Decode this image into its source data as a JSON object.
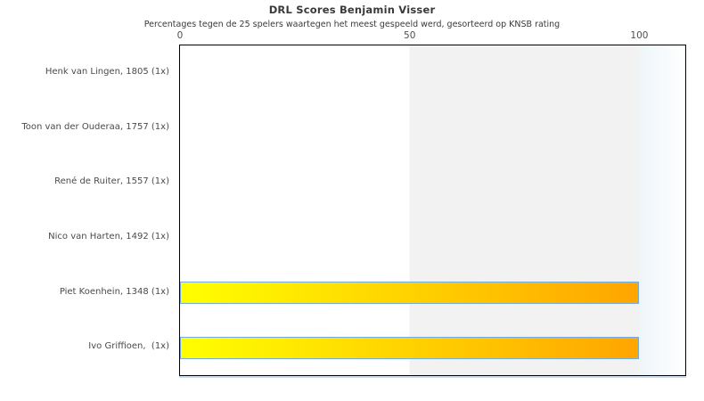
{
  "chart_data": {
    "type": "bar",
    "orientation": "horizontal",
    "title": "DRL Scores Benjamin Visser",
    "subtitle": "Percentages tegen de 25 spelers waartegen het meest gespeeld werd, gesorteerd op KNSB rating",
    "categories": [
      "Henk van Lingen, 1805 (1x)",
      "Toon van der Ouderaa, 1757 (1x)",
      "René de Ruiter, 1557 (1x)",
      "Nico van Harten, 1492 (1x)",
      "Piet Koenhein, 1348 (1x)",
      "Ivo Griffioen,  (1x)"
    ],
    "players": [
      {
        "name": "Henk van Lingen",
        "knsb_rating": "1805",
        "games": "1x",
        "score_pct": 0
      },
      {
        "name": "Toon van der Ouderaa",
        "knsb_rating": "1757",
        "games": "1x",
        "score_pct": 0
      },
      {
        "name": "René de Ruiter",
        "knsb_rating": "1557",
        "games": "1x",
        "score_pct": 0
      },
      {
        "name": "Nico van Harten",
        "knsb_rating": "1492",
        "games": "1x",
        "score_pct": 0
      },
      {
        "name": "Piet Koenhein",
        "knsb_rating": "1348",
        "games": "1x",
        "score_pct": 100
      },
      {
        "name": "Ivo Griffioen",
        "knsb_rating": "",
        "games": "1x",
        "score_pct": 100
      }
    ],
    "values": [
      0,
      0,
      0,
      0,
      100,
      100
    ],
    "xticks": [
      "0",
      "50",
      "100"
    ],
    "xtick_values": [
      0,
      50,
      100
    ],
    "xlim": [
      0,
      110
    ],
    "shaded_band": {
      "from": 50,
      "to": 100
    },
    "grid": "off",
    "legend": "none",
    "xlabel": "",
    "ylabel": ""
  },
  "colors": {
    "bar_gradient_start": "#ffff00",
    "bar_gradient_end": "#ffa500",
    "bar_border": "#74aadd",
    "band": "#f2f2f2",
    "fade": "#eef5f9",
    "background": "#ffffff",
    "plot_border": "#000000",
    "title_text": "#3a3a3a",
    "label_text": "#4a4a4a"
  }
}
